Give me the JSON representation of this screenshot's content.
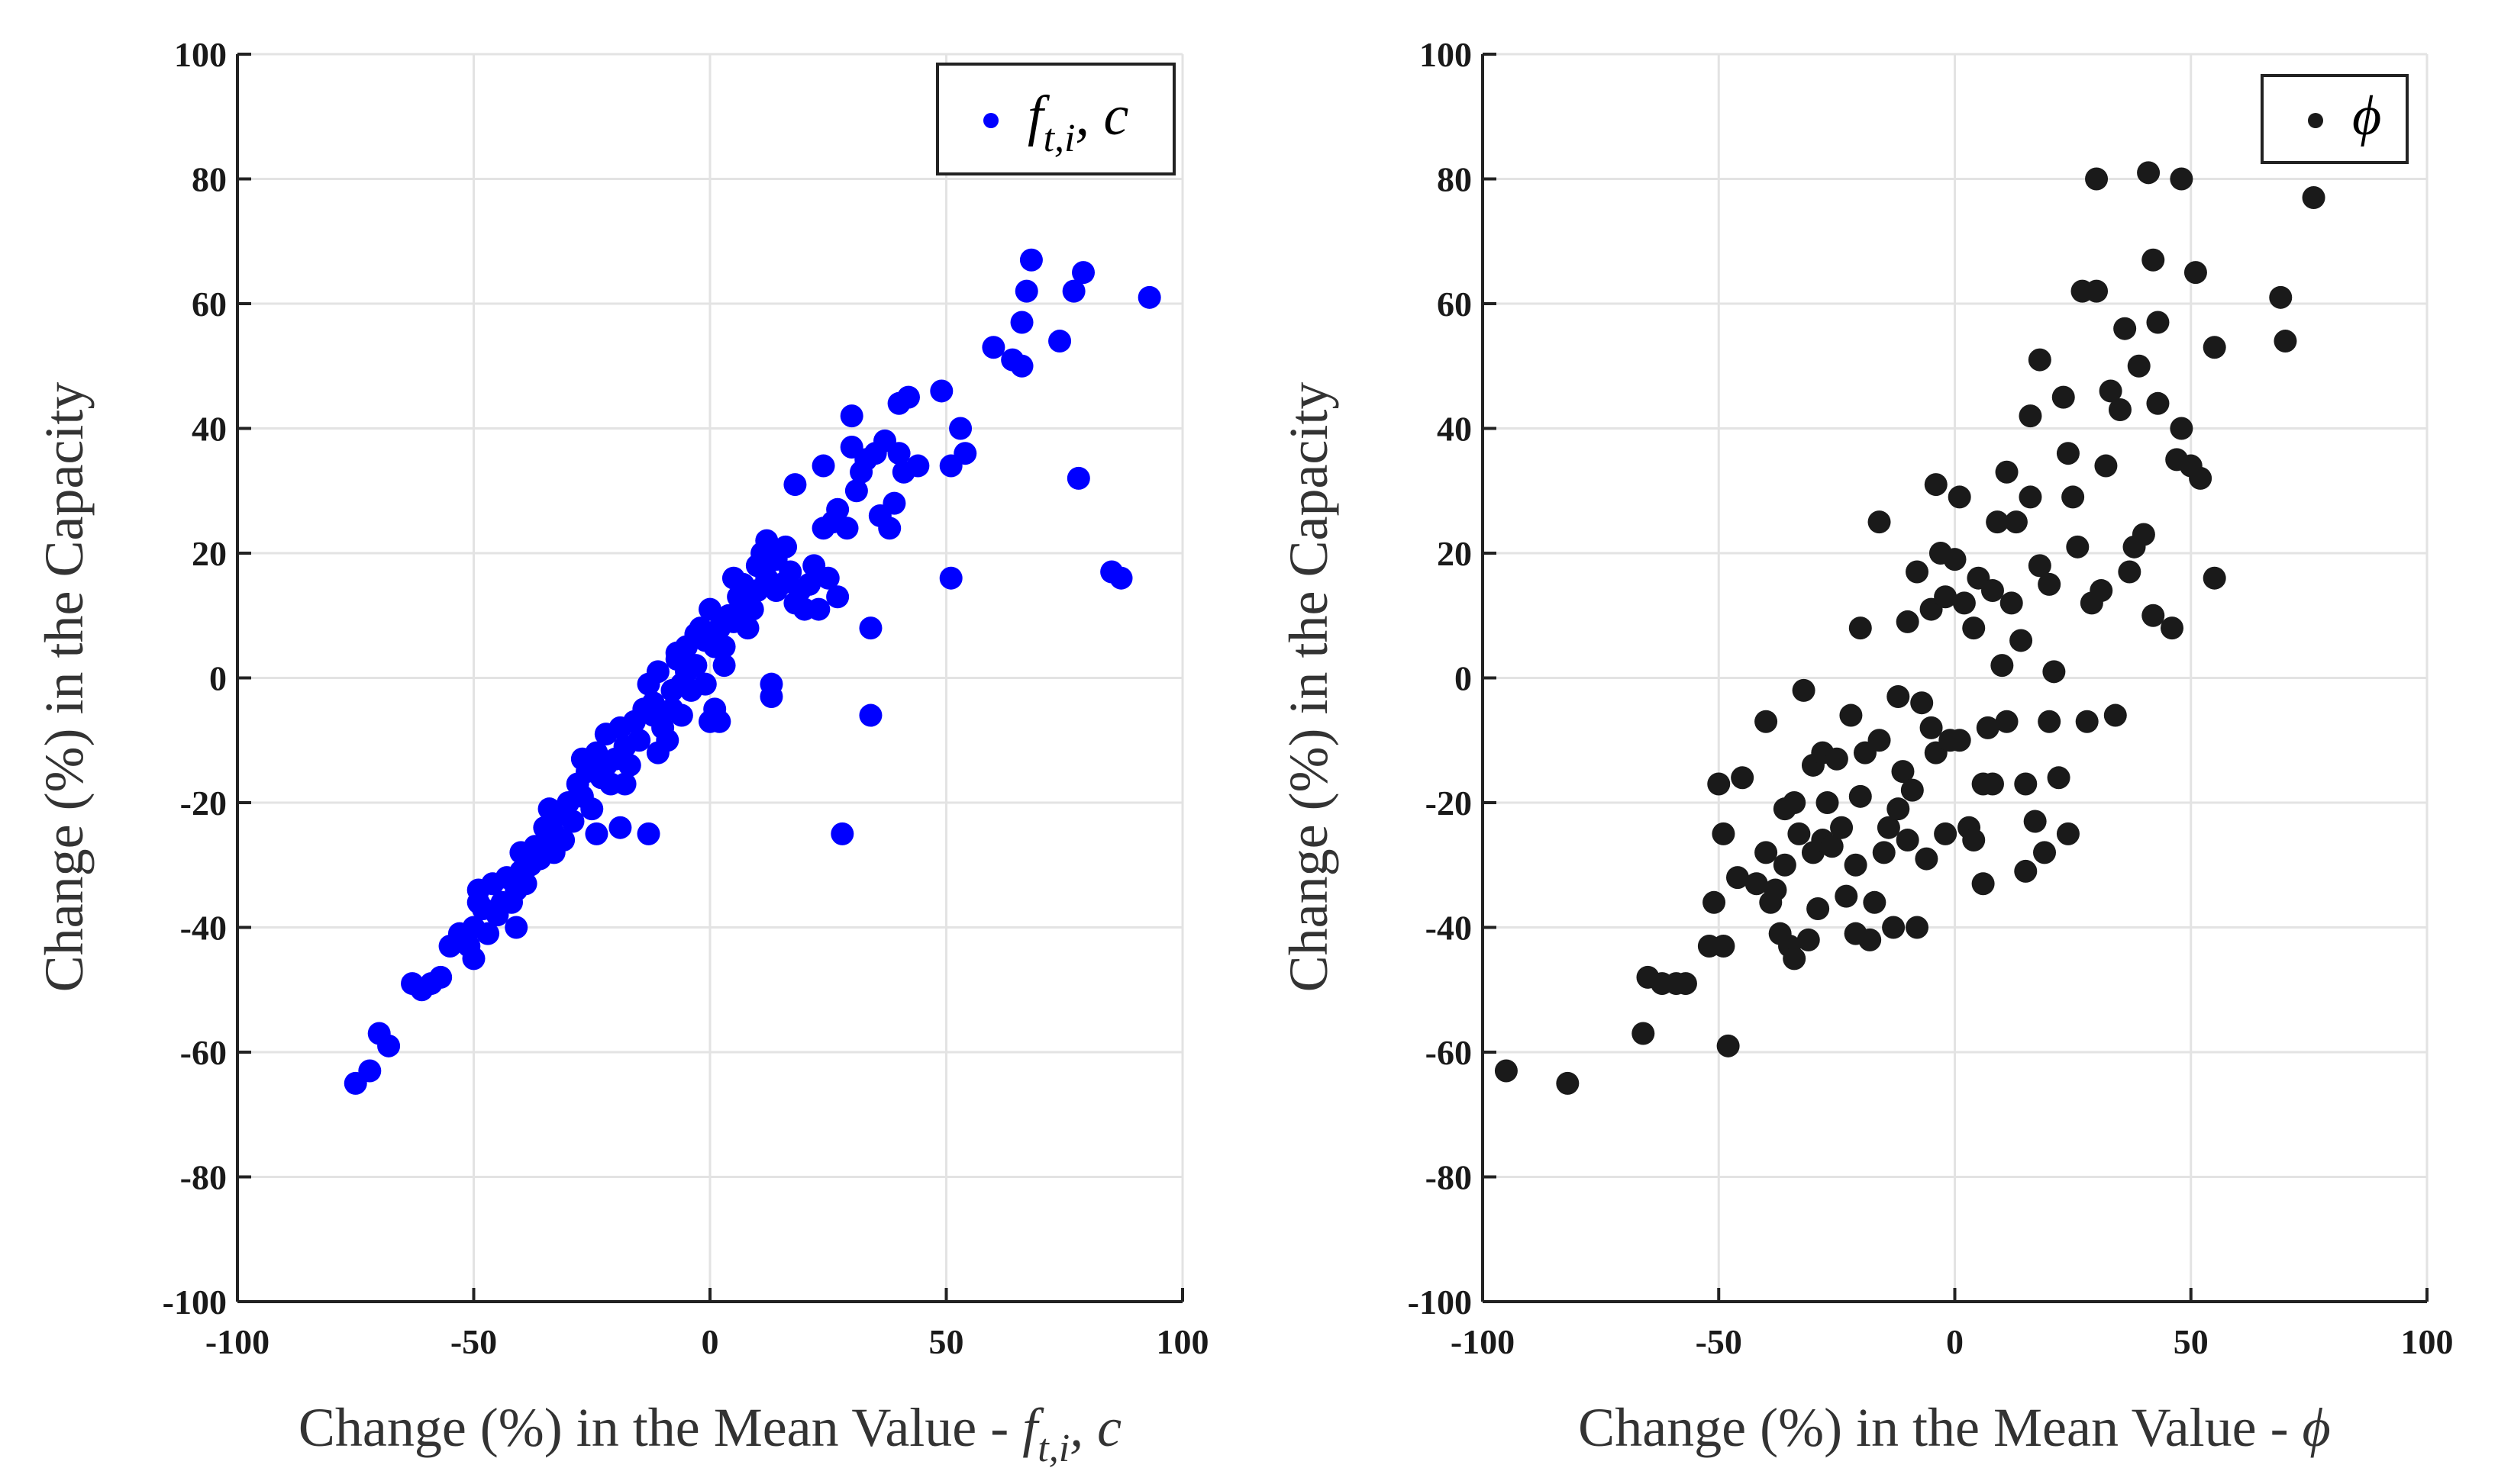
{
  "chart_data": [
    {
      "type": "scatter",
      "marker_color": "#0000ff",
      "xlabel": "Change (%) in the Mean Value - f_{t,i}, c",
      "xlabel_parts": {
        "main": "Change (%) in the Mean Value - ",
        "var": "f",
        "sub": "t,i",
        "tail": ", c"
      },
      "ylabel": "Change (%) in the Capacity",
      "xlim": [
        -100,
        100
      ],
      "ylim": [
        -100,
        100
      ],
      "xticks": [
        "-100",
        "-50",
        "0",
        "50",
        "100"
      ],
      "yticks": [
        "100",
        "80",
        "60",
        "40",
        "20",
        "0",
        "-20",
        "-40",
        "-60",
        "-80",
        "-100"
      ],
      "legend": {
        "label": "f_{t,i}, c",
        "var": "f",
        "sub": "t,i",
        "tail": ", c",
        "position": "top-right"
      },
      "grid": true,
      "points": [
        [
          -75,
          -65
        ],
        [
          -72,
          -63
        ],
        [
          -70,
          -57
        ],
        [
          -68,
          -59
        ],
        [
          -63,
          -49
        ],
        [
          -61,
          -50
        ],
        [
          -59,
          -49
        ],
        [
          -57,
          -48
        ],
        [
          -55,
          -43
        ],
        [
          -53,
          -41
        ],
        [
          -51,
          -43
        ],
        [
          -50,
          -45
        ],
        [
          -50,
          -40
        ],
        [
          -49,
          -36
        ],
        [
          -49,
          -34
        ],
        [
          -48,
          -37
        ],
        [
          -47,
          -41
        ],
        [
          -46,
          -33
        ],
        [
          -45,
          -38
        ],
        [
          -44,
          -36
        ],
        [
          -43,
          -32
        ],
        [
          -42,
          -36
        ],
        [
          -41,
          -34
        ],
        [
          -41,
          -40
        ],
        [
          -40,
          -31
        ],
        [
          -40,
          -28
        ],
        [
          -39,
          -33
        ],
        [
          -38,
          -30
        ],
        [
          -37,
          -27
        ],
        [
          -36,
          -29
        ],
        [
          -35,
          -24
        ],
        [
          -35,
          -27
        ],
        [
          -34,
          -21
        ],
        [
          -33,
          -28
        ],
        [
          -33,
          -25
        ],
        [
          -32,
          -22
        ],
        [
          -31,
          -26
        ],
        [
          -30,
          -20
        ],
        [
          -29,
          -23
        ],
        [
          -28,
          -17
        ],
        [
          -27,
          -19
        ],
        [
          -27,
          -13
        ],
        [
          -26,
          -15
        ],
        [
          -25,
          -21
        ],
        [
          -24,
          -12
        ],
        [
          -24,
          -25
        ],
        [
          -23,
          -16
        ],
        [
          -22,
          -9
        ],
        [
          -22,
          -14
        ],
        [
          -21,
          -17
        ],
        [
          -20,
          -13
        ],
        [
          -19,
          -8
        ],
        [
          -19,
          -24
        ],
        [
          -18,
          -11
        ],
        [
          -18,
          -17
        ],
        [
          -17,
          -14
        ],
        [
          -16,
          -7
        ],
        [
          -15,
          -10
        ],
        [
          -14,
          -5
        ],
        [
          -13,
          -1
        ],
        [
          -13,
          -25
        ],
        [
          -12,
          -6
        ],
        [
          -12,
          -4
        ],
        [
          -11,
          1
        ],
        [
          -11,
          -12
        ],
        [
          -10,
          -8
        ],
        [
          -9,
          -10
        ],
        [
          -8,
          -2
        ],
        [
          -8,
          -5
        ],
        [
          -7,
          3
        ],
        [
          -7,
          4
        ],
        [
          -6,
          -1
        ],
        [
          -6,
          -6
        ],
        [
          -5,
          1
        ],
        [
          -5,
          5
        ],
        [
          -4,
          -2
        ],
        [
          -3,
          2
        ],
        [
          -3,
          7
        ],
        [
          -2,
          8
        ],
        [
          -1,
          -1
        ],
        [
          -1,
          6
        ],
        [
          0,
          11
        ],
        [
          0,
          -7
        ],
        [
          1,
          5
        ],
        [
          1,
          -5
        ],
        [
          2,
          8
        ],
        [
          2,
          -7
        ],
        [
          3,
          2
        ],
        [
          3,
          5
        ],
        [
          4,
          10
        ],
        [
          5,
          9
        ],
        [
          5,
          16
        ],
        [
          6,
          10
        ],
        [
          6,
          13
        ],
        [
          7,
          15
        ],
        [
          8,
          8
        ],
        [
          9,
          11
        ],
        [
          10,
          18
        ],
        [
          10,
          14
        ],
        [
          11,
          20
        ],
        [
          12,
          22
        ],
        [
          12,
          16
        ],
        [
          13,
          -3
        ],
        [
          13,
          -1
        ],
        [
          14,
          14
        ],
        [
          14,
          19
        ],
        [
          15,
          15
        ],
        [
          16,
          21
        ],
        [
          17,
          17
        ],
        [
          18,
          12
        ],
        [
          18,
          31
        ],
        [
          19,
          14
        ],
        [
          20,
          11
        ],
        [
          21,
          15
        ],
        [
          22,
          18
        ],
        [
          23,
          11
        ],
        [
          24,
          24
        ],
        [
          24,
          34
        ],
        [
          25,
          16
        ],
        [
          26,
          25
        ],
        [
          27,
          13
        ],
        [
          27,
          27
        ],
        [
          28,
          -25
        ],
        [
          29,
          24
        ],
        [
          30,
          42
        ],
        [
          30,
          37
        ],
        [
          31,
          30
        ],
        [
          32,
          33
        ],
        [
          33,
          35
        ],
        [
          34,
          8
        ],
        [
          34,
          -6
        ],
        [
          35,
          36
        ],
        [
          36,
          26
        ],
        [
          37,
          38
        ],
        [
          38,
          24
        ],
        [
          39,
          28
        ],
        [
          40,
          36
        ],
        [
          40,
          44
        ],
        [
          41,
          33
        ],
        [
          42,
          45
        ],
        [
          44,
          34
        ],
        [
          49,
          46
        ],
        [
          51,
          34
        ],
        [
          51,
          16
        ],
        [
          53,
          40
        ],
        [
          54,
          36
        ],
        [
          60,
          53
        ],
        [
          64,
          51
        ],
        [
          66,
          57
        ],
        [
          66,
          50
        ],
        [
          67,
          62
        ],
        [
          68,
          67
        ],
        [
          74,
          54
        ],
        [
          77,
          62
        ],
        [
          78,
          32
        ],
        [
          79,
          65
        ],
        [
          85,
          17
        ],
        [
          87,
          16
        ],
        [
          93,
          61
        ]
      ]
    },
    {
      "type": "scatter",
      "marker_color": "#1a1a1a",
      "xlabel": "Change (%) in the Mean Value - ϕ",
      "xlabel_parts": {
        "main": "Change (%) in the Mean Value - ",
        "var": "ϕ"
      },
      "ylabel": "Change (%) in the Capacity",
      "xlim": [
        -100,
        100
      ],
      "ylim": [
        -100,
        100
      ],
      "xticks": [
        "-100",
        "-50",
        "0",
        "50",
        "100"
      ],
      "yticks": [
        "100",
        "80",
        "60",
        "40",
        "20",
        "0",
        "-20",
        "-40",
        "-60",
        "-80",
        "-100"
      ],
      "legend": {
        "label": "ϕ",
        "var": "ϕ",
        "position": "top-right"
      },
      "grid": true,
      "points": [
        [
          -95,
          -63
        ],
        [
          -82,
          -65
        ],
        [
          -66,
          -57
        ],
        [
          -65,
          -48
        ],
        [
          -62,
          -49
        ],
        [
          -59,
          -49
        ],
        [
          -57,
          -49
        ],
        [
          -52,
          -43
        ],
        [
          -51,
          -36
        ],
        [
          -50,
          -17
        ],
        [
          -49,
          -43
        ],
        [
          -49,
          -25
        ],
        [
          -48,
          -59
        ],
        [
          -46,
          -32
        ],
        [
          -45,
          -16
        ],
        [
          -42,
          -33
        ],
        [
          -40,
          -7
        ],
        [
          -40,
          -28
        ],
        [
          -39,
          -36
        ],
        [
          -38,
          -34
        ],
        [
          -37,
          -41
        ],
        [
          -36,
          -21
        ],
        [
          -36,
          -30
        ],
        [
          -35,
          -43
        ],
        [
          -34,
          -45
        ],
        [
          -34,
          -20
        ],
        [
          -33,
          -25
        ],
        [
          -32,
          -2
        ],
        [
          -31,
          -42
        ],
        [
          -30,
          -28
        ],
        [
          -30,
          -14
        ],
        [
          -29,
          -37
        ],
        [
          -28,
          -26
        ],
        [
          -28,
          -12
        ],
        [
          -27,
          -20
        ],
        [
          -26,
          -27
        ],
        [
          -25,
          -13
        ],
        [
          -24,
          -24
        ],
        [
          -23,
          -35
        ],
        [
          -22,
          -6
        ],
        [
          -21,
          -41
        ],
        [
          -21,
          -30
        ],
        [
          -20,
          8
        ],
        [
          -20,
          -19
        ],
        [
          -19,
          -12
        ],
        [
          -18,
          -42
        ],
        [
          -17,
          -36
        ],
        [
          -16,
          -10
        ],
        [
          -16,
          25
        ],
        [
          -15,
          -28
        ],
        [
          -14,
          -24
        ],
        [
          -13,
          -40
        ],
        [
          -12,
          -21
        ],
        [
          -12,
          -3
        ],
        [
          -11,
          -15
        ],
        [
          -10,
          -26
        ],
        [
          -10,
          9
        ],
        [
          -9,
          -18
        ],
        [
          -8,
          17
        ],
        [
          -8,
          -40
        ],
        [
          -7,
          -4
        ],
        [
          -6,
          -29
        ],
        [
          -5,
          -8
        ],
        [
          -5,
          11
        ],
        [
          -4,
          31
        ],
        [
          -4,
          -12
        ],
        [
          -3,
          20
        ],
        [
          -2,
          -25
        ],
        [
          -2,
          13
        ],
        [
          -1,
          -10
        ],
        [
          0,
          19
        ],
        [
          1,
          -10
        ],
        [
          1,
          29
        ],
        [
          2,
          12
        ],
        [
          3,
          -24
        ],
        [
          4,
          8
        ],
        [
          4,
          -26
        ],
        [
          5,
          16
        ],
        [
          6,
          -17
        ],
        [
          6,
          -33
        ],
        [
          7,
          -8
        ],
        [
          8,
          -17
        ],
        [
          8,
          14
        ],
        [
          9,
          25
        ],
        [
          10,
          2
        ],
        [
          11,
          -7
        ],
        [
          11,
          33
        ],
        [
          12,
          12
        ],
        [
          13,
          25
        ],
        [
          14,
          6
        ],
        [
          15,
          -17
        ],
        [
          15,
          -31
        ],
        [
          16,
          29
        ],
        [
          16,
          42
        ],
        [
          17,
          -23
        ],
        [
          18,
          51
        ],
        [
          18,
          18
        ],
        [
          19,
          -28
        ],
        [
          20,
          15
        ],
        [
          20,
          -7
        ],
        [
          21,
          1
        ],
        [
          22,
          -16
        ],
        [
          23,
          45
        ],
        [
          24,
          -25
        ],
        [
          24,
          36
        ],
        [
          25,
          29
        ],
        [
          26,
          21
        ],
        [
          27,
          62
        ],
        [
          28,
          -7
        ],
        [
          29,
          12
        ],
        [
          30,
          80
        ],
        [
          30,
          62
        ],
        [
          31,
          14
        ],
        [
          32,
          34
        ],
        [
          33,
          46
        ],
        [
          34,
          -6
        ],
        [
          35,
          43
        ],
        [
          36,
          56
        ],
        [
          37,
          17
        ],
        [
          38,
          21
        ],
        [
          39,
          50
        ],
        [
          40,
          23
        ],
        [
          41,
          81
        ],
        [
          42,
          10
        ],
        [
          42,
          67
        ],
        [
          43,
          57
        ],
        [
          43,
          44
        ],
        [
          46,
          8
        ],
        [
          47,
          35
        ],
        [
          48,
          40
        ],
        [
          48,
          80
        ],
        [
          50,
          34
        ],
        [
          51,
          65
        ],
        [
          52,
          32
        ],
        [
          55,
          53
        ],
        [
          55,
          16
        ],
        [
          69,
          61
        ],
        [
          70,
          54
        ],
        [
          76,
          77
        ]
      ]
    }
  ]
}
